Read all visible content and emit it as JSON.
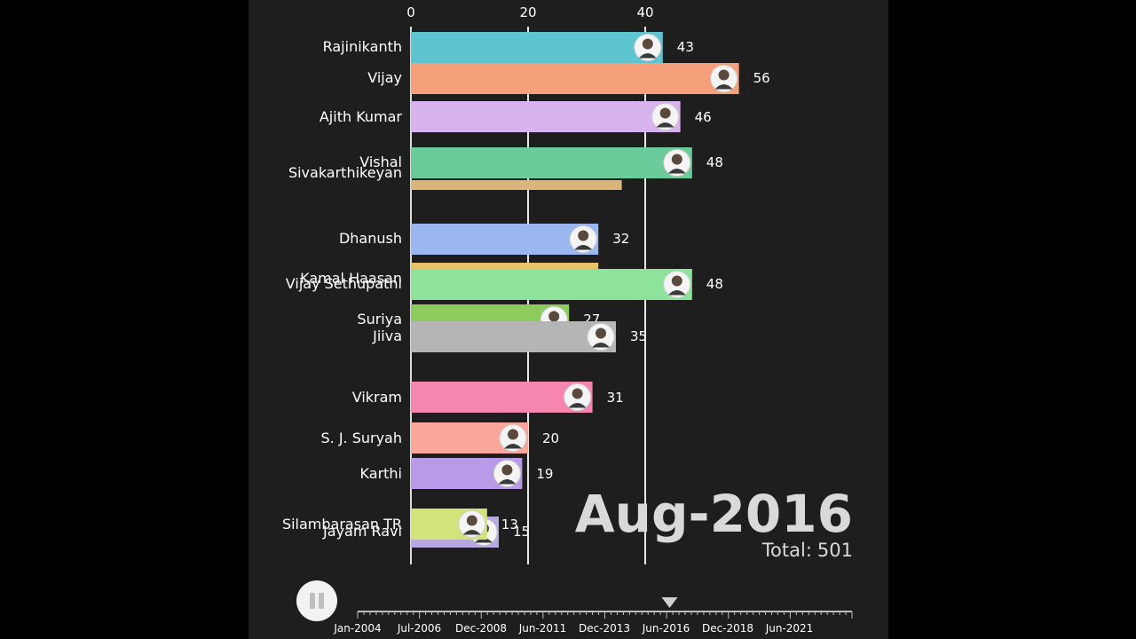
{
  "chart_data": {
    "type": "bar",
    "orientation": "horizontal",
    "date": "Aug-2016",
    "total_label": "Total:",
    "total": 501,
    "x_ticks": [
      0,
      20,
      40
    ],
    "xlim": [
      0,
      75
    ],
    "bars": [
      {
        "name": "Rajinikanth",
        "value": 43,
        "color": "#5ec4cf"
      },
      {
        "name": "Vijay",
        "value": 56,
        "color": "#f5a07a"
      },
      {
        "name": "Ajith Kumar",
        "value": 46,
        "color": "#d8b4ef"
      },
      {
        "name": "Sivakarthikeyan",
        "value": 36,
        "color": "#d9b77a"
      },
      {
        "name": "Vishal",
        "value": 48,
        "color": "#6ccb9a"
      },
      {
        "name": "Dhanush",
        "value": 32,
        "color": "#9bb7f0"
      },
      {
        "name": "Kamal Haasan",
        "value": 32,
        "color": "#e8c36a"
      },
      {
        "name": "Vijay Sethupathi",
        "value": 48,
        "color": "#8ee39b"
      },
      {
        "name": "Suriya",
        "value": 27,
        "color": "#8ccb5e"
      },
      {
        "name": "Jiiva",
        "value": 35,
        "color": "#b5b5b5"
      },
      {
        "name": "Vikram",
        "value": 31,
        "color": "#f586b0"
      },
      {
        "name": "S. J. Suryah",
        "value": 20,
        "color": "#f9a79a"
      },
      {
        "name": "Karthi",
        "value": 19,
        "color": "#b89ae8"
      },
      {
        "name": "Jayam Ravi",
        "value": 15,
        "color": "#b8a8e0"
      },
      {
        "name": "Silambarasan TR",
        "value": 13,
        "color": "#d4e27a"
      }
    ],
    "timeline": {
      "labels": [
        "Jan-2004",
        "Jul-2006",
        "Dec-2008",
        "Jun-2011",
        "Dec-2013",
        "Jun-2016",
        "Dec-2018",
        "Jun-2021"
      ],
      "current": "Aug-2016"
    }
  },
  "controls": {
    "play_state": "pause-icon"
  }
}
